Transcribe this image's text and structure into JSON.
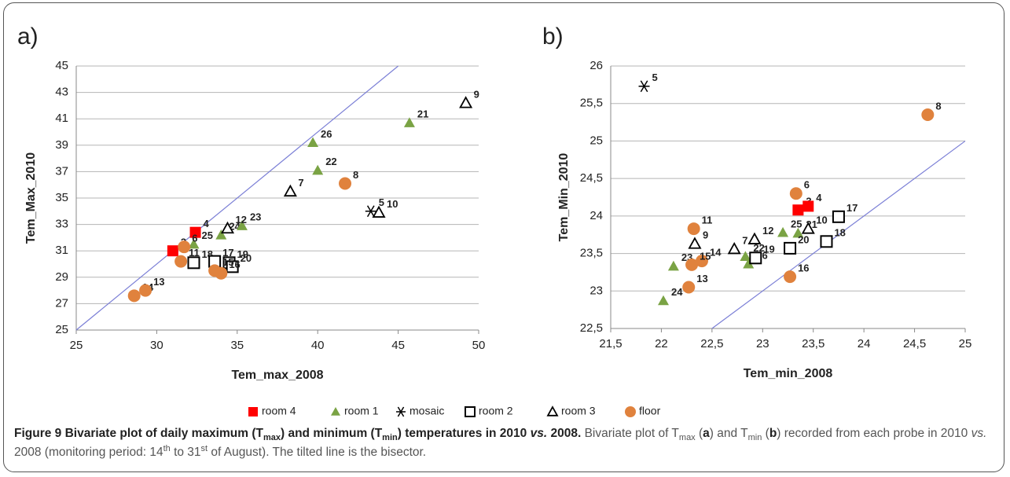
{
  "chart_data": [
    {
      "type": "scatter",
      "label": "a)",
      "x_label": "Tem_max_2008",
      "y_label": "Tem_Max_2010",
      "xlim": [
        25,
        50
      ],
      "xticks": [
        25,
        30,
        35,
        40,
        45,
        50
      ],
      "ylim": [
        25,
        45
      ],
      "yticks": [
        25,
        27,
        29,
        31,
        33,
        35,
        37,
        39,
        41,
        43,
        45
      ],
      "grid": true,
      "bisector": true,
      "series": [
        {
          "name": "room 4",
          "marker": "square",
          "color": "#ff0000",
          "x": [
            31.0,
            32.4
          ],
          "values": [
            31.0,
            32.4
          ],
          "point_labels": [
            "3",
            "4"
          ]
        },
        {
          "name": "room 1",
          "marker": "triangle",
          "color": "#7aa344",
          "x": [
            32.3,
            34.0,
            35.3,
            40.0,
            39.7,
            45.7
          ],
          "values": [
            31.5,
            32.2,
            32.9,
            37.1,
            39.2,
            40.7
          ],
          "point_labels": [
            "25",
            "24",
            "23",
            "22",
            "26",
            "21"
          ]
        },
        {
          "name": "mosaic",
          "marker": "star",
          "color": "#000000",
          "x": [
            43.3
          ],
          "values": [
            34.0
          ],
          "point_labels": [
            "5"
          ]
        },
        {
          "name": "room 2",
          "marker": "open-square",
          "color": "#000000",
          "x": [
            32.3,
            33.6,
            34.5,
            34.7
          ],
          "values": [
            30.1,
            30.2,
            30.1,
            29.8
          ],
          "point_labels": [
            "18",
            "17",
            "19",
            "20"
          ]
        },
        {
          "name": "room 3",
          "marker": "open-triangle",
          "color": "#000000",
          "x": [
            34.4,
            38.3,
            43.8,
            49.2
          ],
          "values": [
            32.7,
            35.5,
            33.9,
            42.2
          ],
          "point_labels": [
            "12",
            "7",
            "10",
            "9"
          ]
        },
        {
          "name": "floor",
          "marker": "circle",
          "color": "#e0823d",
          "x": [
            28.6,
            29.3,
            31.5,
            31.7,
            33.6,
            34.0,
            41.7
          ],
          "values": [
            27.6,
            28.0,
            30.2,
            31.3,
            29.5,
            29.3,
            36.1
          ],
          "point_labels": [
            "14",
            "13",
            "11",
            "6",
            "15",
            "16",
            "8"
          ]
        }
      ]
    },
    {
      "type": "scatter",
      "label": "b)",
      "x_label": "Tem_min_2008",
      "y_label": "Tem_Min_2010",
      "xlim": [
        21.5,
        25
      ],
      "xticks": [
        {
          "value": 21.5,
          "label": "21,5"
        },
        22,
        {
          "value": 22.5,
          "label": "22,5"
        },
        23,
        {
          "value": 23.5,
          "label": "23,5"
        },
        24,
        {
          "value": 24.5,
          "label": "24,5"
        },
        25
      ],
      "ylim": [
        22.5,
        26
      ],
      "yticks": [
        {
          "value": 22.5,
          "label": "22,5"
        },
        23,
        {
          "value": 23.5,
          "label": "23,5"
        },
        24,
        {
          "value": 24.5,
          "label": "24,5"
        },
        25,
        {
          "value": 25.5,
          "label": "25,5"
        },
        26
      ],
      "grid": true,
      "bisector": true,
      "series": [
        {
          "marker": "square",
          "color": "#ff0000",
          "x": [
            23.35,
            23.45
          ],
          "values": [
            24.08,
            24.13
          ],
          "point_labels": [
            "3",
            "4"
          ]
        },
        {
          "marker": "triangle",
          "color": "#7aa344",
          "x": [
            23.2,
            23.35,
            22.83,
            22.86,
            22.12,
            22.02
          ],
          "values": [
            23.78,
            23.77,
            23.46,
            23.36,
            23.33,
            22.87
          ],
          "point_labels": [
            "25",
            "21",
            "22",
            "26",
            "23",
            "24"
          ]
        },
        {
          "marker": "star",
          "color": "#000000",
          "x": [
            21.83
          ],
          "values": [
            25.73
          ],
          "point_labels": [
            "5"
          ]
        },
        {
          "marker": "open-square",
          "color": "#000000",
          "x": [
            23.75,
            23.63,
            23.27,
            22.93
          ],
          "values": [
            23.99,
            23.66,
            23.57,
            23.44
          ],
          "point_labels": [
            "17",
            "18",
            "20",
            "19"
          ]
        },
        {
          "marker": "open-triangle",
          "color": "#000000",
          "x": [
            23.45,
            22.92,
            22.72,
            22.33
          ],
          "values": [
            23.83,
            23.69,
            23.56,
            23.63
          ],
          "point_labels": [
            "10",
            "12",
            "7",
            "9"
          ]
        },
        {
          "marker": "circle",
          "color": "#e0823d",
          "x": [
            24.63,
            23.33,
            22.32,
            22.4,
            22.3,
            22.27,
            23.27
          ],
          "values": [
            25.35,
            24.3,
            23.83,
            23.4,
            23.35,
            23.05,
            23.19
          ],
          "point_labels": [
            "8",
            "6",
            "11",
            "14",
            "15",
            "13",
            "16"
          ]
        }
      ]
    }
  ],
  "caption": {
    "runs": [
      {
        "text": "Figure 9 Bivariate plot of daily maximum (T",
        "style": "b"
      },
      {
        "text": "max",
        "style": "b sub"
      },
      {
        "text": ") and minimum (T",
        "style": "b"
      },
      {
        "text": "min",
        "style": "b sub"
      },
      {
        "text": ") temperatures in 2010 ",
        "style": "b"
      },
      {
        "text": "vs.",
        "style": "b i"
      },
      {
        "text": " 2008.",
        "style": "b"
      },
      {
        "text": " Bivariate plot of T",
        "style": "n"
      },
      {
        "text": "max",
        "style": "sub"
      },
      {
        "text": " (",
        "style": "n"
      },
      {
        "text": "a",
        "style": "b"
      },
      {
        "text": ") and T",
        "style": "n"
      },
      {
        "text": "min",
        "style": "sub"
      },
      {
        "text": " (",
        "style": "n"
      },
      {
        "text": "b",
        "style": "b"
      },
      {
        "text": ") recorded from each probe in 2010 ",
        "style": "n"
      },
      {
        "text": "vs.",
        "style": "i"
      },
      {
        "text": " 2008 (monitoring period: 14",
        "style": "n"
      },
      {
        "text": "th",
        "style": "sup"
      },
      {
        "text": " to 31",
        "style": "n"
      },
      {
        "text": "st",
        "style": "sup"
      },
      {
        "text": " of August). The tilted line is the bisector.",
        "style": "n"
      }
    ]
  }
}
